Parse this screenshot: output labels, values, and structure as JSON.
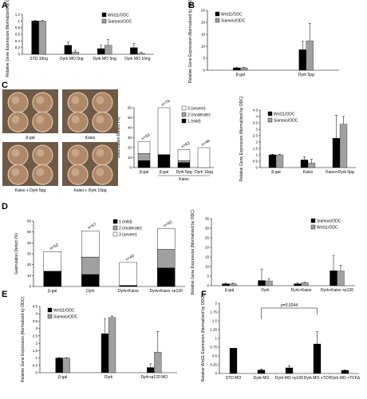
{
  "colors": {
    "black": "#000000",
    "gray": "#a0a0a0",
    "lightgray": "#d8d8d8",
    "white": "#ffffff",
    "embryo": "#b0886a"
  },
  "figure": {
    "panel_letters": [
      "A",
      "B",
      "C",
      "D",
      "E",
      "F"
    ],
    "photo_captions": [
      "β-gal",
      "Kaiso",
      "Kaiso + Dyrk 5pg",
      "Kaiso + Dyrk 10pg"
    ]
  },
  "chart_data": [
    {
      "id": "A",
      "type": "bar",
      "ylabel": "Relative Gene Expression (Normalized by ODC)",
      "ylim": [
        0,
        1.2
      ],
      "yticks": [
        "0",
        "0.2",
        "0.4",
        "0.6",
        "0.8",
        "1",
        "1.2"
      ],
      "categories": [
        "STD 10ng",
        "Dyrk MO 5ng",
        "Dyrk MO 5ng",
        "Dyrk MO 10ng"
      ],
      "series": [
        {
          "name": "Wnt11/ODC",
          "color": "#000000",
          "values": [
            1.0,
            0.27,
            0.17,
            0.2
          ],
          "err": [
            0.02,
            0.1,
            0.1,
            0.12
          ]
        },
        {
          "name": "Siamois/ODC",
          "color": "#a0a0a0",
          "values": [
            1.0,
            0.07,
            0.27,
            0.03
          ],
          "err": [
            0.02,
            0.05,
            0.17,
            0.03
          ]
        }
      ],
      "legend": "top-right"
    },
    {
      "id": "B",
      "type": "bar",
      "ylabel": "Relative Gene Expression (Normalized by ODC)",
      "ylim": [
        0,
        25
      ],
      "yticks": [
        "0",
        "5",
        "10",
        "15",
        "20",
        "25"
      ],
      "categories": [
        "β-gal",
        "Dyrk 5pg"
      ],
      "series": [
        {
          "name": "Wnt11/ODC",
          "color": "#000000",
          "values": [
            1.0,
            8.6
          ],
          "err": [
            0.2,
            3.5
          ]
        },
        {
          "name": "Siamois/ODC",
          "color": "#a0a0a0",
          "values": [
            1.0,
            12.3
          ],
          "err": [
            0.2,
            7.3
          ]
        }
      ],
      "legend": "top-left"
    },
    {
      "id": "C-defect",
      "type": "bar",
      "stacked": true,
      "ylabel": "Gastrulation Defect (%)",
      "ylim": [
        0,
        60
      ],
      "yticks": [
        "0",
        "10",
        "20",
        "30",
        "40",
        "50",
        "60"
      ],
      "categories": [
        "β-gal",
        "β-gal",
        "Dyrk 5pg",
        "Dyrk 10pg"
      ],
      "group_label": "Kaiso",
      "n_labels": [
        "n=55",
        "n=76",
        "n=62",
        "n=46"
      ],
      "series": [
        {
          "name": "3 (severe)",
          "color": "#ffffff",
          "values": [
            12,
            47,
            11,
            20
          ]
        },
        {
          "name": "2 (moderate)",
          "color": "#a0a0a0",
          "values": [
            7,
            0,
            2,
            0
          ]
        },
        {
          "name": "1 (mild)",
          "color": "#000000",
          "values": [
            7,
            13,
            5,
            0
          ]
        }
      ],
      "legend": "top-right"
    },
    {
      "id": "C-expr",
      "type": "bar",
      "ylabel": "Relative Gene Expression (Normalized by ODC)",
      "ylim": [
        0,
        4.5
      ],
      "yticks": [
        "0",
        "0.5",
        "1",
        "1.5",
        "2",
        "2.5",
        "3",
        "3.5",
        "4",
        "4.5"
      ],
      "categories": [
        "β-gal",
        "Kaiso",
        "Kaiso+Dyrk 5pg"
      ],
      "series": [
        {
          "name": "Wnt11/ODC",
          "color": "#000000",
          "values": [
            1.0,
            0.6,
            2.3
          ],
          "err": [
            0.05,
            0.25,
            1.8
          ]
        },
        {
          "name": "Siamois/ODC",
          "color": "#a0a0a0",
          "values": [
            1.0,
            0.35,
            3.4
          ],
          "err": [
            0.05,
            0.3,
            0.6
          ]
        }
      ],
      "legend": "top-left"
    },
    {
      "id": "D-defect",
      "type": "bar",
      "stacked": true,
      "ylabel": "Gastrulation Defect (%)",
      "ylim": [
        0,
        60
      ],
      "yticks": [
        "0",
        "10",
        "20",
        "30",
        "40",
        "50",
        "60"
      ],
      "categories": [
        "β-gal",
        "Dyrk",
        "Dyrk+Kaiso",
        "Dyrk+Kaiso +p120"
      ],
      "n_labels": [
        "n=52",
        "n=57",
        "n=40",
        "n=50"
      ],
      "series": [
        {
          "name": "1 (mild)",
          "color": "#000000",
          "values": [
            14,
            11,
            1,
            17
          ]
        },
        {
          "name": "2 (moderate)",
          "color": "#a0a0a0",
          "values": [
            0,
            16,
            0,
            17
          ]
        },
        {
          "name": "3 (severe)",
          "color": "#ffffff",
          "values": [
            18,
            24,
            21,
            19
          ]
        }
      ],
      "legend": "top-right"
    },
    {
      "id": "D-expr",
      "type": "bar",
      "ylabel": "Relative Gene Expression (Normalized by ODC)",
      "ylim": [
        0,
        35
      ],
      "yticks": [
        "0",
        "5",
        "10",
        "15",
        "20",
        "25",
        "30",
        "35"
      ],
      "categories": [
        "β-gal",
        "Dyrk",
        "Dyrk+Kaiso",
        "Dyrk+Kaiso +p120"
      ],
      "series": [
        {
          "name": "Siamois/ODC",
          "color": "#000000",
          "values": [
            1.0,
            2.7,
            1.0,
            7.8
          ],
          "err": [
            0.3,
            6.0,
            0.4,
            8.0
          ]
        },
        {
          "name": "Wnt11/ODC",
          "color": "#a0a0a0",
          "values": [
            1.0,
            2.5,
            1.5,
            7.7
          ],
          "err": [
            0.3,
            1.2,
            0.4,
            3.0
          ]
        }
      ],
      "legend": "top-right"
    },
    {
      "id": "E",
      "type": "bar",
      "ylabel": "Relative Gene Expression (Normalized by ODC)",
      "ylim": [
        0,
        4.5
      ],
      "yticks": [
        "0",
        "0.5",
        "1",
        "1.5",
        "2",
        "2.5",
        "3",
        "3.5",
        "4",
        "4.5"
      ],
      "categories": [
        "β-gal",
        "Dyrk",
        "Dyrk+p120 MO"
      ],
      "series": [
        {
          "name": "Wnt11/ODC",
          "color": "#000000",
          "values": [
            1.0,
            2.65,
            0.35
          ],
          "err": [
            0.02,
            1.0,
            0.25
          ]
        },
        {
          "name": "Siamois/ODC",
          "color": "#a0a0a0",
          "values": [
            1.0,
            3.75,
            1.4
          ],
          "err": [
            0.02,
            0.1,
            1.4
          ]
        }
      ],
      "legend": "top-left"
    },
    {
      "id": "F",
      "type": "bar",
      "ylabel": "Relative Wnt11 Expression (Normalized by ODC)",
      "ylim": [
        0,
        2
      ],
      "yticks": [
        "0",
        "0.25",
        "0.5",
        "0.75",
        "1",
        "1.25",
        "1.5",
        "1.75",
        "2"
      ],
      "categories": [
        "STD MO",
        "Dyrk MO",
        "Dyrk MO +p120",
        "Dyrk MO +TCF",
        "Dyrk MO +TCFΔ"
      ],
      "series": [
        {
          "name": "Wnt11",
          "color": "#000000",
          "values": [
            0.72,
            0.1,
            0.16,
            0.84,
            0.09
          ],
          "err": [
            0,
            0.03,
            0.06,
            0.35,
            0.01
          ]
        }
      ],
      "annotation": "p=0.0244"
    }
  ]
}
